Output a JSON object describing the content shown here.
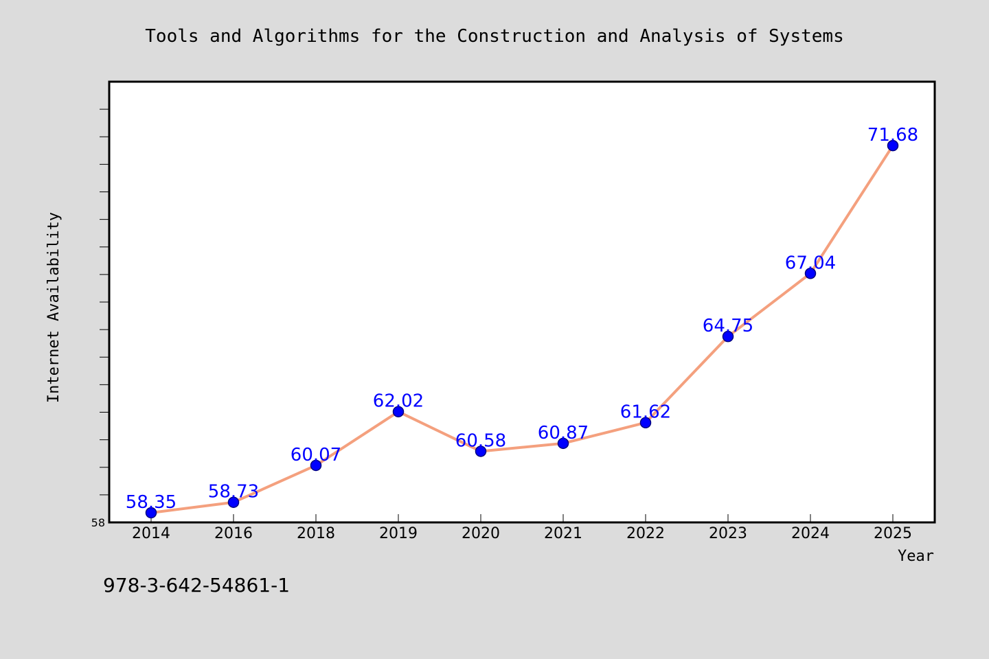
{
  "footer_text": "978-3-642-54861-1",
  "chart_data": {
    "type": "line",
    "title": "Tools and Algorithms for the Construction and Analysis of Systems",
    "xlabel": "Year",
    "ylabel": "Internet Availability",
    "categories": [
      "2014",
      "2016",
      "2018",
      "2019",
      "2020",
      "2021",
      "2022",
      "2023",
      "2024",
      "2025"
    ],
    "series": [
      {
        "values": [
          58.35,
          58.73,
          60.07,
          62.02,
          60.58,
          60.87,
          61.62,
          64.75,
          67.04,
          71.68
        ],
        "data_labels": [
          "58.35",
          "58.73",
          "60.07",
          "62.02",
          "60.58",
          "60.87",
          "61.62",
          "64.75",
          "67.04",
          "71.68"
        ]
      }
    ],
    "ylim": [
      58,
      74
    ],
    "y_tick_labels": [
      "58"
    ],
    "grid": false,
    "legend": "none",
    "colors": {
      "line": "#f4a07e",
      "marker": "#0000ff",
      "marker_edge": "#000080",
      "data_label": "#0000ff",
      "plot_background": "#ffffff",
      "figure_background": "#dcdcdc"
    }
  }
}
